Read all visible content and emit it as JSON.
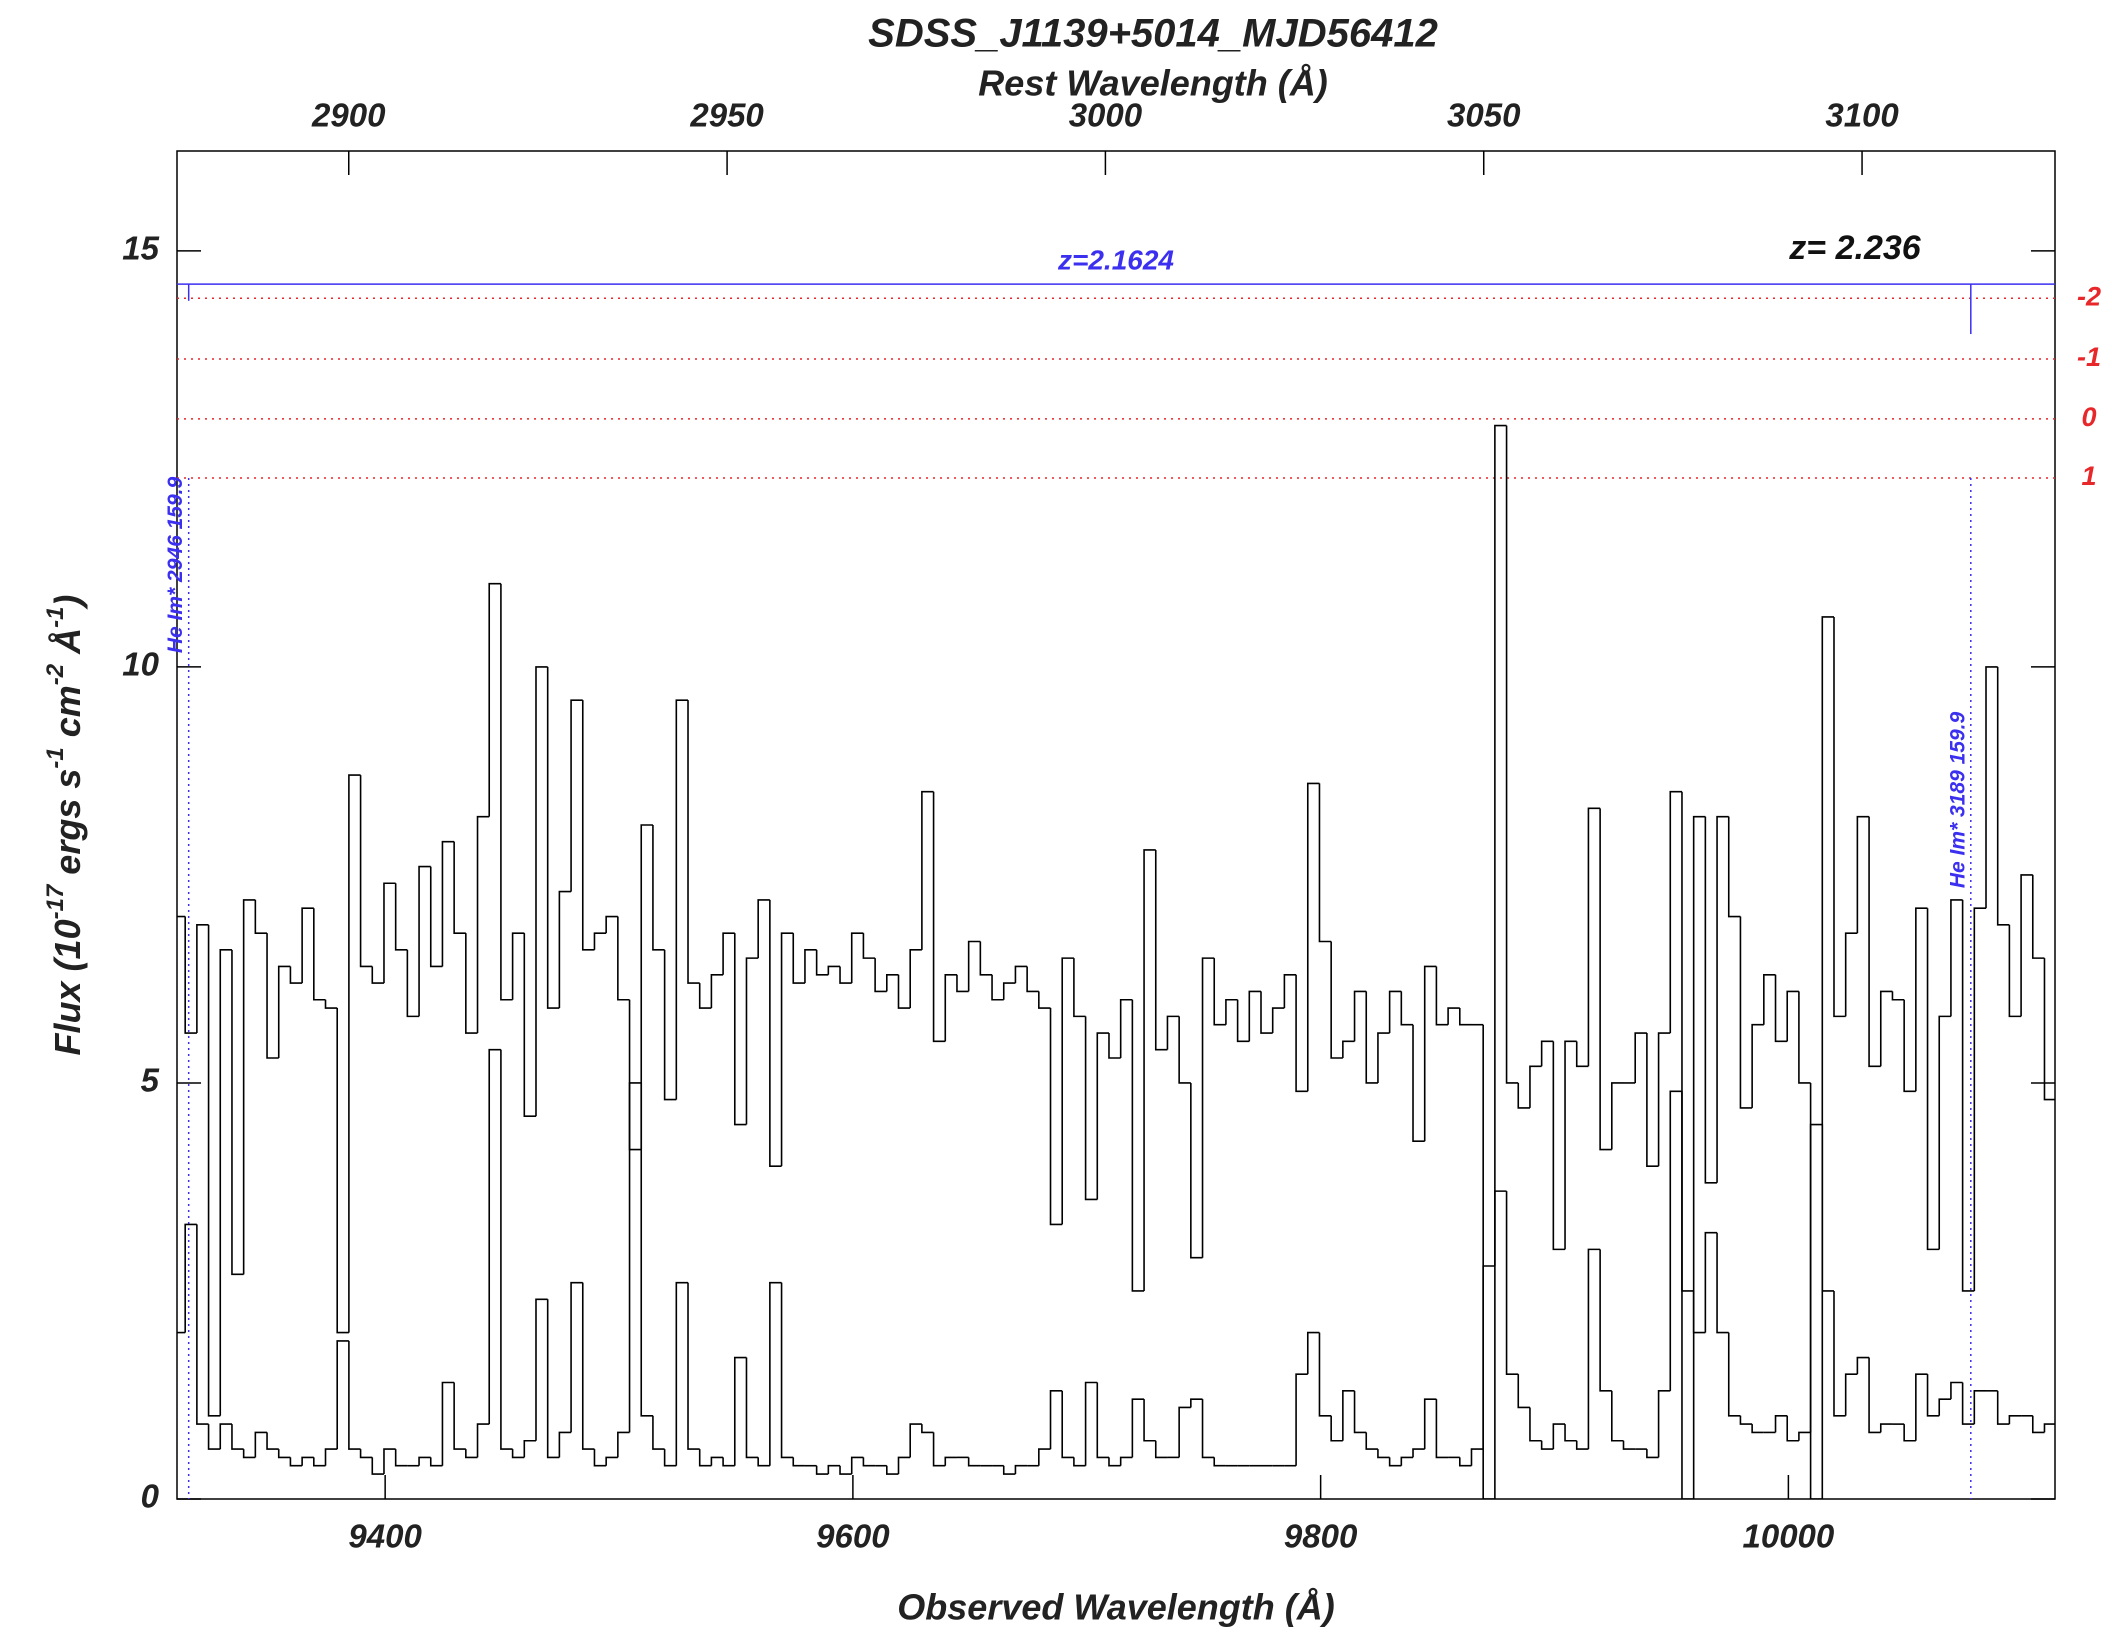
{
  "chart_data": {
    "type": "step",
    "title": "SDSS_J1139+5014_MJD56412",
    "x_label": "Observed Wavelength (Å)",
    "x2_label": "Rest Wavelength (Å)",
    "y_label_parts": [
      "Flux (10",
      "-17",
      " ergs s",
      "-1",
      " cm",
      "-2",
      " Å",
      "-1",
      ")"
    ],
    "xlim": [
      9311,
      10114
    ],
    "xticks": [
      9400,
      9600,
      9800,
      10000
    ],
    "x2lim": [
      2877.3,
      3125.5
    ],
    "x2ticks": [
      2900,
      2950,
      3000,
      3050,
      3100
    ],
    "ylim": [
      0,
      16.2
    ],
    "yticks": [
      0,
      5,
      10,
      15
    ],
    "x": [
      9312,
      9317,
      9322,
      9327,
      9332,
      9337,
      9342,
      9347,
      9352,
      9357,
      9362,
      9367,
      9372,
      9377,
      9382,
      9387,
      9392,
      9397,
      9402,
      9407,
      9412,
      9417,
      9422,
      9427,
      9432,
      9437,
      9442,
      9447,
      9452,
      9457,
      9462,
      9467,
      9472,
      9477,
      9482,
      9487,
      9492,
      9497,
      9502,
      9507,
      9512,
      9517,
      9522,
      9527,
      9532,
      9537,
      9542,
      9547,
      9552,
      9557,
      9562,
      9567,
      9572,
      9577,
      9582,
      9587,
      9592,
      9597,
      9602,
      9607,
      9612,
      9617,
      9622,
      9627,
      9632,
      9637,
      9642,
      9647,
      9652,
      9657,
      9662,
      9667,
      9672,
      9677,
      9682,
      9687,
      9692,
      9697,
      9702,
      9707,
      9712,
      9717,
      9722,
      9727,
      9732,
      9737,
      9742,
      9747,
      9752,
      9757,
      9762,
      9767,
      9772,
      9777,
      9782,
      9787,
      9792,
      9797,
      9802,
      9807,
      9812,
      9817,
      9822,
      9827,
      9832,
      9837,
      9842,
      9847,
      9852,
      9857,
      9862,
      9867,
      9872,
      9877,
      9882,
      9887,
      9892,
      9897,
      9902,
      9907,
      9912,
      9917,
      9922,
      9927,
      9932,
      9937,
      9942,
      9947,
      9952,
      9957,
      9962,
      9967,
      9972,
      9977,
      9982,
      9987,
      9992,
      9997,
      10002,
      10007,
      10012,
      10017,
      10022,
      10027,
      10032,
      10037,
      10042,
      10047,
      10052,
      10057,
      10062,
      10067,
      10072,
      10077,
      10082,
      10087,
      10092,
      10097,
      10102,
      10107,
      10112
    ],
    "series": [
      {
        "name": "flux",
        "color": "#000000",
        "values": [
          7.0,
          5.6,
          6.9,
          1.0,
          6.6,
          2.7,
          7.2,
          6.8,
          5.3,
          6.4,
          6.2,
          7.1,
          6.0,
          5.9,
          2.0,
          8.7,
          6.4,
          6.2,
          7.4,
          6.6,
          5.8,
          7.6,
          6.4,
          7.9,
          6.8,
          5.6,
          8.2,
          11.0,
          6.0,
          6.8,
          4.6,
          10.0,
          5.9,
          7.3,
          9.6,
          6.6,
          6.8,
          7.0,
          6.0,
          4.2,
          8.1,
          6.6,
          4.8,
          9.6,
          6.2,
          5.9,
          6.3,
          6.8,
          4.5,
          6.5,
          7.2,
          4.0,
          6.8,
          6.2,
          6.6,
          6.3,
          6.4,
          6.2,
          6.8,
          6.5,
          6.1,
          6.3,
          5.9,
          6.6,
          8.5,
          5.5,
          6.3,
          6.1,
          6.7,
          6.3,
          6.0,
          6.2,
          6.4,
          6.1,
          5.9,
          3.3,
          6.5,
          5.8,
          3.6,
          5.6,
          5.3,
          6.0,
          2.5,
          7.8,
          5.4,
          5.8,
          5.0,
          2.9,
          6.5,
          5.7,
          6.0,
          5.5,
          6.1,
          5.6,
          5.9,
          6.3,
          4.9,
          8.6,
          6.7,
          5.3,
          5.5,
          6.1,
          5.0,
          5.6,
          6.1,
          5.7,
          4.3,
          6.4,
          5.7,
          5.9,
          5.7,
          5.7,
          0.0,
          12.9,
          5.0,
          4.7,
          5.2,
          5.5,
          3.0,
          5.5,
          5.2,
          8.3,
          4.2,
          5.0,
          5.0,
          5.6,
          4.0,
          5.6,
          8.5,
          0.0,
          8.2,
          3.8,
          8.2,
          7.0,
          4.7,
          5.7,
          6.3,
          5.5,
          6.1,
          5.0,
          0.0,
          10.6,
          5.8,
          6.8,
          8.2,
          5.2,
          6.1,
          6.0,
          4.9,
          7.1,
          3.0,
          5.8,
          7.2,
          2.5,
          7.1,
          10.0,
          6.9,
          5.8,
          7.5,
          6.5,
          4.8
        ]
      },
      {
        "name": "error",
        "color": "#000000",
        "values": [
          2.0,
          3.3,
          0.9,
          0.6,
          0.9,
          0.6,
          0.5,
          0.8,
          0.6,
          0.5,
          0.4,
          0.5,
          0.4,
          0.6,
          1.9,
          0.6,
          0.5,
          0.3,
          0.6,
          0.4,
          0.4,
          0.5,
          0.4,
          1.4,
          0.6,
          0.5,
          0.9,
          5.4,
          0.6,
          0.5,
          0.7,
          2.4,
          0.5,
          0.8,
          2.6,
          0.6,
          0.4,
          0.5,
          0.8,
          5.0,
          1.0,
          0.6,
          0.4,
          2.6,
          0.6,
          0.4,
          0.5,
          0.4,
          1.7,
          0.5,
          0.4,
          2.6,
          0.5,
          0.4,
          0.4,
          0.3,
          0.4,
          0.3,
          0.5,
          0.4,
          0.4,
          0.3,
          0.5,
          0.9,
          0.8,
          0.4,
          0.5,
          0.5,
          0.4,
          0.4,
          0.4,
          0.3,
          0.4,
          0.4,
          0.6,
          1.3,
          0.5,
          0.4,
          1.4,
          0.5,
          0.4,
          0.5,
          1.2,
          0.7,
          0.5,
          0.5,
          1.1,
          1.2,
          0.5,
          0.4,
          0.4,
          0.4,
          0.4,
          0.4,
          0.4,
          0.4,
          1.5,
          2.0,
          1.0,
          0.7,
          1.3,
          0.8,
          0.6,
          0.5,
          0.4,
          0.5,
          0.6,
          1.2,
          0.5,
          0.5,
          0.4,
          0.6,
          2.8,
          3.7,
          1.5,
          1.1,
          0.7,
          0.6,
          0.9,
          0.7,
          0.6,
          3.0,
          1.3,
          0.7,
          0.6,
          0.6,
          0.5,
          1.3,
          4.9,
          2.5,
          2.0,
          3.2,
          2.0,
          1.0,
          0.9,
          0.8,
          0.8,
          1.0,
          0.7,
          0.8,
          4.5,
          2.5,
          1.0,
          1.5,
          1.7,
          0.8,
          0.9,
          0.9,
          0.7,
          1.5,
          1.0,
          1.2,
          1.4,
          0.9,
          1.3,
          1.3,
          0.9,
          1.0,
          1.0,
          0.8,
          0.9
        ]
      }
    ],
    "redshift_label": "z= 2.236",
    "absorber": {
      "label": "z=2.1624",
      "color": "#3b2ff0",
      "y": 14.6,
      "lines": [
        {
          "x": 9316,
          "label": "He Im* 2946 159.9",
          "tick_to": 14.4
        },
        {
          "x": 10078,
          "label": "He Im* 3189 159.9",
          "tick_to": 14.0
        }
      ]
    },
    "levels": {
      "color": "#e8272a",
      "labels": [
        -2,
        -1,
        0,
        1
      ],
      "y": [
        14.43,
        13.7,
        12.98,
        12.27
      ]
    }
  }
}
